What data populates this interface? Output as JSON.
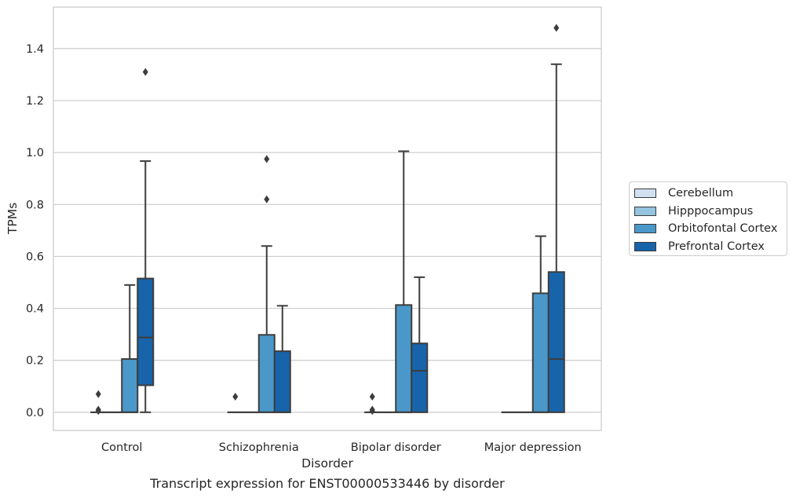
{
  "chart_data": {
    "type": "boxplot",
    "caption": "Transcript expression for ENST00000533446 by disorder",
    "xlabel": "Disorder",
    "ylabel": "TPMs",
    "ylim": [
      -0.07,
      1.56
    ],
    "yticks": [
      0.0,
      0.2,
      0.4,
      0.6,
      0.8,
      1.0,
      1.2,
      1.4
    ],
    "ytick_labels": [
      "0.0",
      "0.2",
      "0.4",
      "0.6",
      "0.8",
      "1.0",
      "1.2",
      "1.4"
    ],
    "grid": true,
    "legend_position": "right",
    "categories": [
      "Control",
      "Schizophrenia",
      "Bipolar disorder",
      "Major depression"
    ],
    "series": [
      {
        "name": "Cerebellum",
        "color": "#d0e1f2",
        "boxes": [
          {
            "q1": 0,
            "median": 0,
            "q3": 0,
            "whisker_low": 0,
            "whisker_high": 0,
            "outliers": [
              0.07,
              0.01,
              0.005
            ]
          },
          {
            "q1": 0,
            "median": 0,
            "q3": 0,
            "whisker_low": 0,
            "whisker_high": 0,
            "outliers": [
              0.06
            ]
          },
          {
            "q1": 0,
            "median": 0,
            "q3": 0,
            "whisker_low": 0,
            "whisker_high": 0,
            "outliers": [
              0.06,
              0.01,
              0.005
            ]
          },
          {
            "q1": 0,
            "median": 0,
            "q3": 0,
            "whisker_low": 0,
            "whisker_high": 0,
            "outliers": []
          }
        ]
      },
      {
        "name": "Hipppocampus",
        "color": "#94c4df",
        "boxes": [
          {
            "q1": 0,
            "median": 0,
            "q3": 0,
            "whisker_low": 0,
            "whisker_high": 0,
            "outliers": []
          },
          {
            "q1": 0,
            "median": 0,
            "q3": 0,
            "whisker_low": 0,
            "whisker_high": 0,
            "outliers": []
          },
          {
            "q1": 0,
            "median": 0,
            "q3": 0,
            "whisker_low": 0,
            "whisker_high": 0,
            "outliers": []
          },
          {
            "q1": 0,
            "median": 0,
            "q3": 0,
            "whisker_low": 0,
            "whisker_high": 0,
            "outliers": []
          }
        ]
      },
      {
        "name": "Orbitofontal Cortex",
        "color": "#4a98c9",
        "boxes": [
          {
            "q1": 0,
            "median": 0,
            "q3": 0.205,
            "whisker_low": 0,
            "whisker_high": 0.49,
            "outliers": []
          },
          {
            "q1": 0,
            "median": 0,
            "q3": 0.298,
            "whisker_low": 0,
            "whisker_high": 0.64,
            "outliers": [
              0.82,
              0.975
            ]
          },
          {
            "q1": 0,
            "median": 0,
            "q3": 0.413,
            "whisker_low": 0,
            "whisker_high": 1.005,
            "outliers": []
          },
          {
            "q1": 0,
            "median": 0,
            "q3": 0.458,
            "whisker_low": 0,
            "whisker_high": 0.678,
            "outliers": []
          }
        ]
      },
      {
        "name": "Prefrontal Cortex",
        "color": "#1764ab",
        "boxes": [
          {
            "q1": 0.104,
            "median": 0.288,
            "q3": 0.515,
            "whisker_low": 0,
            "whisker_high": 0.967,
            "outliers": [
              1.31
            ]
          },
          {
            "q1": 0,
            "median": 0,
            "q3": 0.235,
            "whisker_low": 0,
            "whisker_high": 0.41,
            "outliers": []
          },
          {
            "q1": 0,
            "median": 0.16,
            "q3": 0.265,
            "whisker_low": 0,
            "whisker_high": 0.52,
            "outliers": []
          },
          {
            "q1": 0,
            "median": 0.205,
            "q3": 0.54,
            "whisker_low": 0,
            "whisker_high": 1.34,
            "outliers": [
              1.48
            ]
          }
        ]
      }
    ]
  }
}
